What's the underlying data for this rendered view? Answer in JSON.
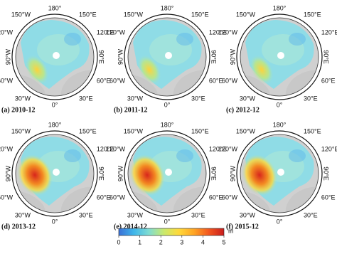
{
  "panels": [
    {
      "label": "(a) 2010-12"
    },
    {
      "label": "(b) 2011-12"
    },
    {
      "label": "(c) 2012-12"
    },
    {
      "label": "(d) 2013-12"
    },
    {
      "label": "(e) 2014-12"
    },
    {
      "label": "(f) 2015-12"
    }
  ],
  "longitude_labels": [
    "180°",
    "150°E",
    "120°E",
    "90°E",
    "60°E",
    "30°E",
    "0°",
    "30°W",
    "60°W",
    "90°W",
    "120°W",
    "150°W"
  ],
  "colorbar": {
    "unit": "m",
    "lim": [
      0,
      5
    ],
    "ticks": [
      0,
      1,
      2,
      3,
      4,
      5
    ],
    "colors": [
      "#3b6fd6",
      "#3fb6ea",
      "#7fdcd2",
      "#c9e96c",
      "#ffd93a",
      "#ffa524",
      "#f2561f",
      "#c81d1d"
    ]
  }
}
